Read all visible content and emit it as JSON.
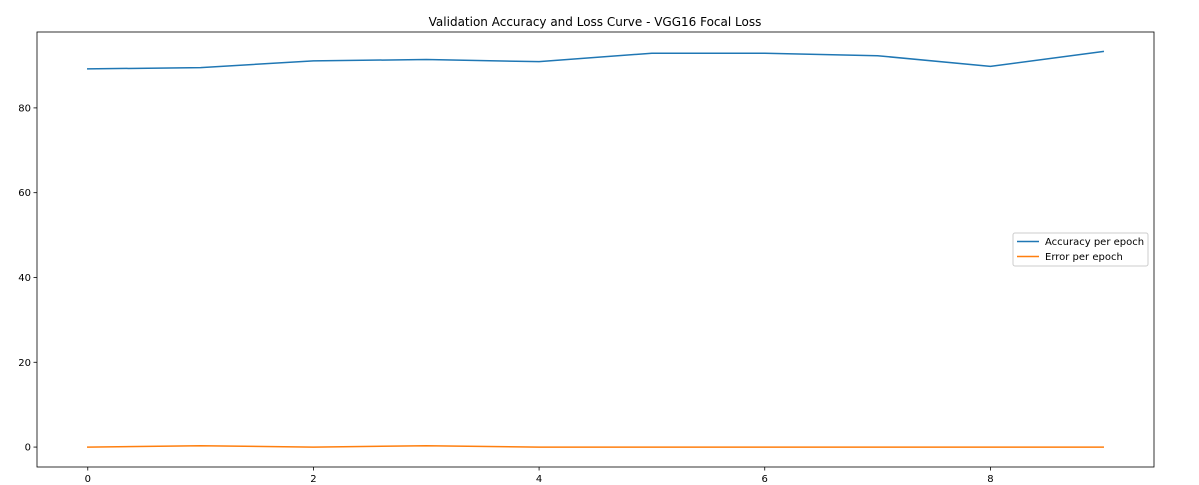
{
  "chart_data": {
    "type": "line",
    "title": "Validation Accuracy and Loss Curve - VGG16 Focal Loss",
    "xlabel": "",
    "ylabel": "",
    "x": [
      0,
      1,
      2,
      3,
      4,
      5,
      6,
      7,
      8,
      9
    ],
    "xlim": [
      -0.45,
      9.45
    ],
    "ylim": [
      -4.7,
      97.9
    ],
    "xticks": [
      0,
      2,
      4,
      6,
      8
    ],
    "yticks": [
      0,
      20,
      40,
      60,
      80
    ],
    "grid": false,
    "legend_position": "center-right",
    "series": [
      {
        "name": "Accuracy per epoch",
        "color": "#1f77b4",
        "values": [
          89.2,
          89.5,
          91.1,
          91.4,
          90.9,
          92.9,
          92.9,
          92.3,
          89.8,
          93.3
        ]
      },
      {
        "name": "Error per epoch",
        "color": "#ff7f0e",
        "values": [
          0.0,
          0.3,
          0.0,
          0.3,
          0.0,
          0.0,
          0.0,
          0.0,
          0.0,
          0.0
        ]
      }
    ]
  }
}
